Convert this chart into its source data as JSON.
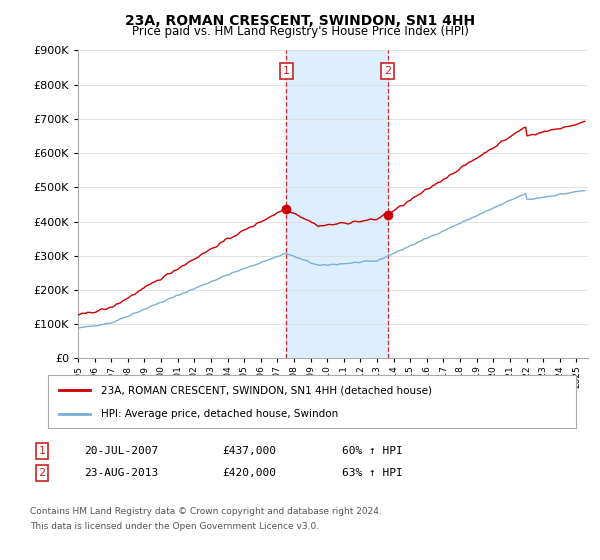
{
  "title": "23A, ROMAN CRESCENT, SWINDON, SN1 4HH",
  "subtitle": "Price paid vs. HM Land Registry's House Price Index (HPI)",
  "legend_line1": "23A, ROMAN CRESCENT, SWINDON, SN1 4HH (detached house)",
  "legend_line2": "HPI: Average price, detached house, Swindon",
  "sale1_date": "20-JUL-2007",
  "sale1_price": "£437,000",
  "sale1_hpi": "60% ↑ HPI",
  "sale1_year": 2007.54,
  "sale1_value": 437000,
  "sale2_date": "23-AUG-2013",
  "sale2_price": "£420,000",
  "sale2_hpi": "63% ↑ HPI",
  "sale2_year": 2013.64,
  "sale2_value": 420000,
  "footnote1": "Contains HM Land Registry data © Crown copyright and database right 2024.",
  "footnote2": "This data is licensed under the Open Government Licence v3.0.",
  "red_color": "#cc0000",
  "blue_color": "#7ab0d4",
  "shade_color": "#ddeeff",
  "marker_box_color": "#cc2222",
  "ylim": [
    0,
    900000
  ],
  "xlim_start": 1995.0,
  "xlim_end": 2025.7
}
